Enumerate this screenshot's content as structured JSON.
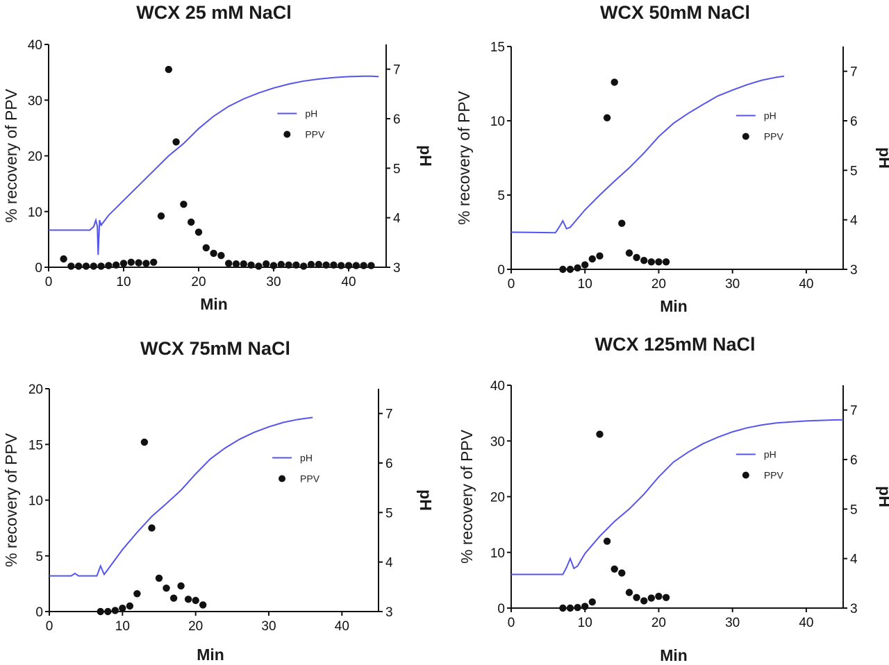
{
  "chart_data": [
    {
      "type": "scatter",
      "title": "WCX 25 mM NaCl",
      "xlabel": "Min",
      "ylabel": "% recovery of PPV",
      "y2label": "pH",
      "xlim": [
        0,
        45
      ],
      "xticks": [
        0,
        10,
        20,
        30,
        40
      ],
      "ylim": [
        0,
        40
      ],
      "yticks": [
        0,
        10,
        20,
        30,
        40
      ],
      "y2lim": [
        3,
        7.5
      ],
      "y2ticks": [
        3,
        4,
        5,
        6,
        7
      ],
      "legend": {
        "position": "center-right",
        "entries": [
          "pH",
          "PPV"
        ]
      },
      "series": [
        {
          "name": "pH",
          "type": "line",
          "axis": "right",
          "color": "#5555ee",
          "x": [
            0,
            5.5,
            6,
            6.3,
            6.5,
            6.6,
            6.8,
            7,
            8,
            10,
            12,
            14,
            16,
            18,
            20,
            22,
            24,
            26,
            28,
            30,
            32,
            34,
            36,
            38,
            40,
            42,
            43,
            44
          ],
          "y": [
            3.75,
            3.75,
            3.82,
            3.95,
            3.82,
            3.25,
            3.95,
            3.85,
            4.05,
            4.35,
            4.65,
            4.95,
            5.25,
            5.5,
            5.8,
            6.05,
            6.25,
            6.4,
            6.52,
            6.62,
            6.7,
            6.76,
            6.8,
            6.83,
            6.85,
            6.86,
            6.86,
            6.85
          ]
        },
        {
          "name": "PPV",
          "type": "scatter",
          "axis": "left",
          "color": "#111111",
          "x": [
            2,
            3,
            4,
            5,
            6,
            7,
            8,
            9,
            10,
            11,
            12,
            13,
            14,
            15,
            16,
            17,
            18,
            19,
            20,
            21,
            22,
            23,
            24,
            25,
            26,
            27,
            28,
            29,
            30,
            31,
            32,
            33,
            34,
            35,
            36,
            37,
            38,
            39,
            40,
            41,
            42,
            43
          ],
          "y": [
            1.5,
            0.2,
            0.2,
            0.2,
            0.2,
            0.2,
            0.3,
            0.4,
            0.7,
            0.9,
            0.8,
            0.7,
            0.9,
            9.2,
            35.5,
            22.5,
            11.3,
            8.1,
            6.3,
            3.5,
            2.5,
            2.1,
            0.7,
            0.6,
            0.6,
            0.4,
            0.2,
            0.6,
            0.3,
            0.5,
            0.4,
            0.4,
            0.2,
            0.5,
            0.5,
            0.4,
            0.4,
            0.3,
            0.3,
            0.3,
            0.3,
            0.3
          ]
        }
      ]
    },
    {
      "type": "scatter",
      "title": "WCX 50mM NaCl",
      "xlabel": "Min",
      "ylabel": "% recovery of PPV",
      "y2label": "pH",
      "xlim": [
        0,
        45
      ],
      "xticks": [
        0,
        10,
        20,
        30,
        40
      ],
      "ylim": [
        0,
        15
      ],
      "yticks": [
        0,
        5,
        10,
        15
      ],
      "y2lim": [
        3,
        7.5
      ],
      "y2ticks": [
        3,
        4,
        5,
        6,
        7
      ],
      "legend": {
        "position": "center-right",
        "entries": [
          "pH",
          "PPV"
        ]
      },
      "series": [
        {
          "name": "pH",
          "type": "line",
          "axis": "right",
          "color": "#5555ee",
          "x": [
            0,
            6,
            6.5,
            7,
            7.5,
            8,
            10,
            12,
            14,
            16,
            18,
            20,
            22,
            24,
            26,
            28,
            30,
            32,
            34,
            36,
            37
          ],
          "y": [
            3.75,
            3.74,
            3.85,
            3.98,
            3.82,
            3.85,
            4.2,
            4.5,
            4.78,
            5.05,
            5.35,
            5.68,
            5.95,
            6.15,
            6.33,
            6.5,
            6.62,
            6.73,
            6.82,
            6.88,
            6.9
          ]
        },
        {
          "name": "PPV",
          "type": "scatter",
          "axis": "left",
          "color": "#111111",
          "x": [
            7,
            8,
            9,
            10,
            11,
            12,
            13,
            14,
            15,
            16,
            17,
            18,
            19,
            20,
            21
          ],
          "y": [
            0,
            0,
            0.1,
            0.3,
            0.7,
            0.9,
            10.2,
            12.6,
            3.1,
            1.1,
            0.8,
            0.6,
            0.5,
            0.5,
            0.5
          ]
        }
      ]
    },
    {
      "type": "scatter",
      "title": "WCX 75mM NaCl",
      "xlabel": "Min",
      "ylabel": "% recovery of PPV",
      "y2label": "pH",
      "xlim": [
        0,
        45
      ],
      "xticks": [
        0,
        10,
        20,
        30,
        40
      ],
      "ylim": [
        0,
        20
      ],
      "yticks": [
        0,
        5,
        10,
        15,
        20
      ],
      "y2lim": [
        3,
        7.5
      ],
      "y2ticks": [
        3,
        4,
        5,
        6,
        7
      ],
      "legend": {
        "position": "center-right",
        "entries": [
          "pH",
          "PPV"
        ]
      },
      "series": [
        {
          "name": "pH",
          "type": "line",
          "axis": "right",
          "color": "#5555ee",
          "x": [
            0,
            3,
            3.5,
            4,
            6.5,
            7,
            7.5,
            8,
            10,
            12,
            14,
            16,
            18,
            20,
            22,
            24,
            26,
            28,
            30,
            32,
            34,
            36
          ],
          "y": [
            3.72,
            3.72,
            3.77,
            3.72,
            3.72,
            3.92,
            3.75,
            3.85,
            4.25,
            4.6,
            4.92,
            5.18,
            5.45,
            5.78,
            6.08,
            6.3,
            6.48,
            6.62,
            6.73,
            6.82,
            6.88,
            6.92
          ]
        },
        {
          "name": "PPV",
          "type": "scatter",
          "axis": "left",
          "color": "#111111",
          "x": [
            7,
            8,
            9,
            10,
            11,
            12,
            13,
            14,
            15,
            16,
            17,
            18,
            19,
            20,
            21
          ],
          "y": [
            0,
            0,
            0.1,
            0.3,
            0.5,
            1.6,
            15.2,
            7.5,
            3.0,
            2.1,
            1.2,
            2.3,
            1.1,
            1.0,
            0.6
          ]
        }
      ]
    },
    {
      "type": "scatter",
      "title": "WCX 125mM NaCl",
      "xlabel": "Min",
      "ylabel": "% recovery of PPV",
      "y2label": "pH",
      "xlim": [
        0,
        45
      ],
      "xticks": [
        0,
        10,
        20,
        30,
        40
      ],
      "ylim": [
        0,
        40
      ],
      "yticks": [
        0,
        10,
        20,
        30,
        40
      ],
      "y2lim": [
        3,
        7.5
      ],
      "y2ticks": [
        3,
        4,
        5,
        6,
        7
      ],
      "legend": {
        "position": "center-right",
        "entries": [
          "pH",
          "PPV"
        ]
      },
      "series": [
        {
          "name": "pH",
          "type": "line",
          "axis": "right",
          "color": "#5555ee",
          "x": [
            0,
            7,
            7.5,
            8,
            8.5,
            9,
            10,
            12,
            14,
            16,
            18,
            20,
            22,
            24,
            26,
            28,
            30,
            32,
            34,
            36,
            38,
            40,
            42,
            44,
            45
          ],
          "y": [
            3.68,
            3.68,
            3.82,
            4.0,
            3.8,
            3.85,
            4.1,
            4.45,
            4.75,
            5.0,
            5.3,
            5.65,
            5.95,
            6.15,
            6.32,
            6.45,
            6.56,
            6.64,
            6.7,
            6.74,
            6.76,
            6.78,
            6.79,
            6.8,
            6.8
          ]
        },
        {
          "name": "PPV",
          "type": "scatter",
          "axis": "left",
          "color": "#111111",
          "x": [
            7,
            8,
            9,
            10,
            11,
            12,
            13,
            14,
            15,
            16,
            17,
            18,
            19,
            20,
            21
          ],
          "y": [
            0,
            0,
            0.1,
            0.3,
            1.1,
            31.2,
            12.0,
            7.0,
            6.3,
            2.8,
            1.9,
            1.3,
            1.8,
            2.1,
            1.9
          ]
        }
      ]
    }
  ]
}
